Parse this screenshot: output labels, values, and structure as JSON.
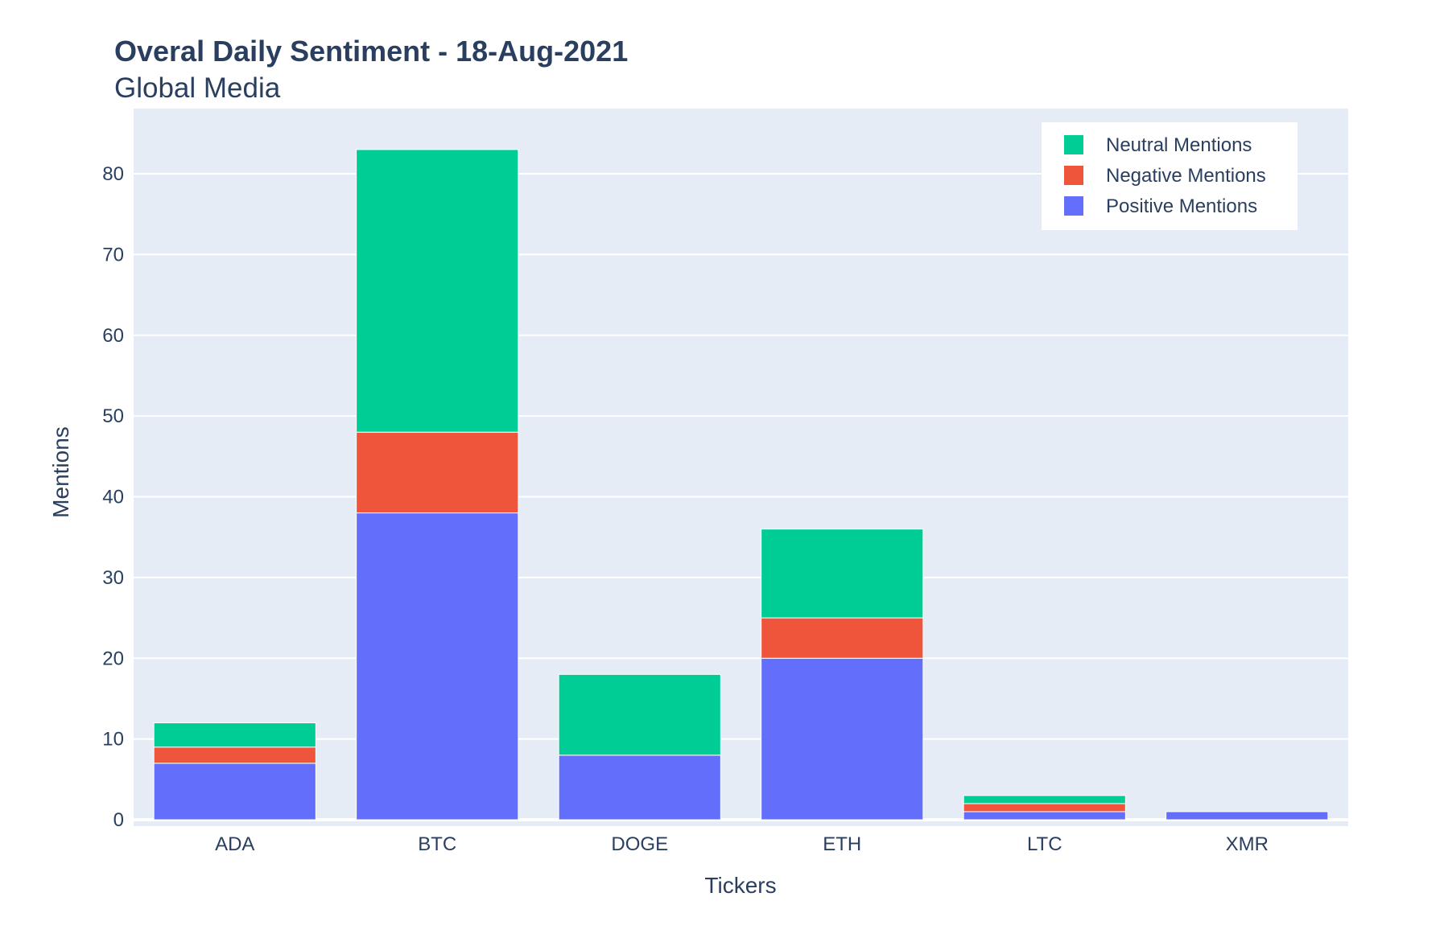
{
  "chart_data": {
    "type": "bar",
    "barmode": "stack",
    "title": "Overal Daily Sentiment - 18-Aug-2021",
    "subtitle": "Global Media",
    "xlabel": "Tickers",
    "ylabel": "Mentions",
    "categories": [
      "ADA",
      "BTC",
      "DOGE",
      "ETH",
      "LTC",
      "XMR"
    ],
    "ylim": [
      0,
      88
    ],
    "yticks": [
      0,
      10,
      20,
      30,
      40,
      50,
      60,
      70,
      80
    ],
    "grid": true,
    "legend_position": "top-right",
    "series": [
      {
        "name": "Positive Mentions",
        "color": "#636efa",
        "values": [
          7,
          38,
          8,
          20,
          1,
          1
        ]
      },
      {
        "name": "Negative Mentions",
        "color": "#ef553b",
        "values": [
          2,
          10,
          0,
          5,
          1,
          0
        ]
      },
      {
        "name": "Neutral Mentions",
        "color": "#00cc96",
        "values": [
          3,
          35,
          10,
          11,
          1,
          0
        ]
      }
    ],
    "legend_order": [
      "Neutral Mentions",
      "Negative Mentions",
      "Positive Mentions"
    ],
    "colors": {
      "plot_bg": "#e5ecf6",
      "grid": "#ffffff",
      "text": "#2a3f5f"
    }
  }
}
